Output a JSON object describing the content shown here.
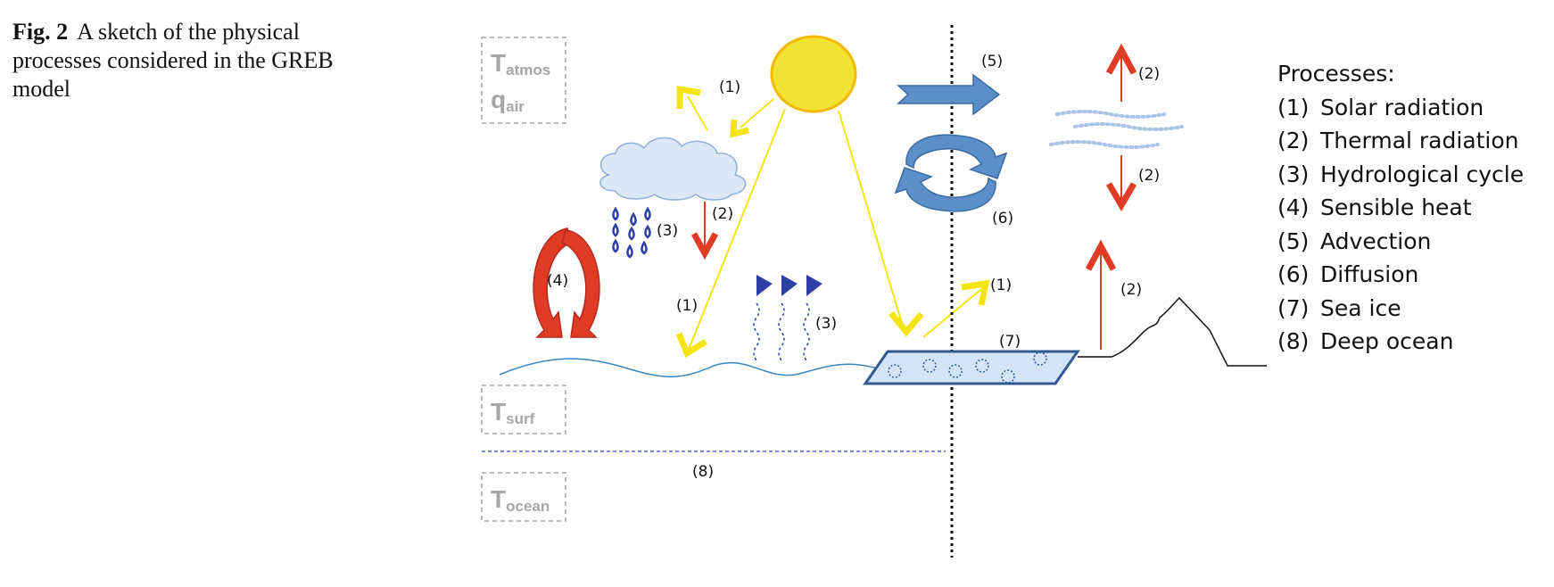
{
  "caption": {
    "fig_label": "Fig. 2",
    "text": "A sketch of the physical processes considered in the GREB model"
  },
  "variables": {
    "t_atmos": {
      "base": "T",
      "sub": "atmos"
    },
    "q_air": {
      "base": "q",
      "sub": "air"
    },
    "t_surf": {
      "base": "T",
      "sub": "surf"
    },
    "t_ocean": {
      "base": "T",
      "sub": "ocean"
    }
  },
  "labels": {
    "solar": "(1)",
    "thermal": "(2)",
    "hydro": "(3)",
    "sensible": "(4)",
    "advection": "(5)",
    "diffusion": "(6)",
    "seaice": "(7)",
    "deepocean": "(8)"
  },
  "legend": {
    "title": "Processes:",
    "items": [
      {
        "num": "(1)",
        "name": "Solar radiation"
      },
      {
        "num": "(2)",
        "name": "Thermal radiation"
      },
      {
        "num": "(3)",
        "name": "Hydrological cycle"
      },
      {
        "num": "(4)",
        "name": "Sensible heat"
      },
      {
        "num": "(5)",
        "name": "Advection"
      },
      {
        "num": "(6)",
        "name": "Diffusion"
      },
      {
        "num": "(7)",
        "name": "Sea ice"
      },
      {
        "num": "(8)",
        "name": "Deep ocean"
      }
    ]
  },
  "colors": {
    "sun": "#f2e234",
    "sun_stroke": "#f5b800",
    "solar_arrow": "#f5e50f",
    "thermal_arrow": "#e03b24",
    "sensible_arrow": "#e03b24",
    "water": "#3b86c0",
    "blue_arrow": "#5b8fc7",
    "rain": "#2e3fa6",
    "cloud": "#dde8f6",
    "seaice_fill": "#d4e3f5",
    "seaice_stroke": "#2f5b91",
    "var_box": "#a6a6a6",
    "land": "#111111",
    "deep_ocean_line": "#3344cc"
  }
}
